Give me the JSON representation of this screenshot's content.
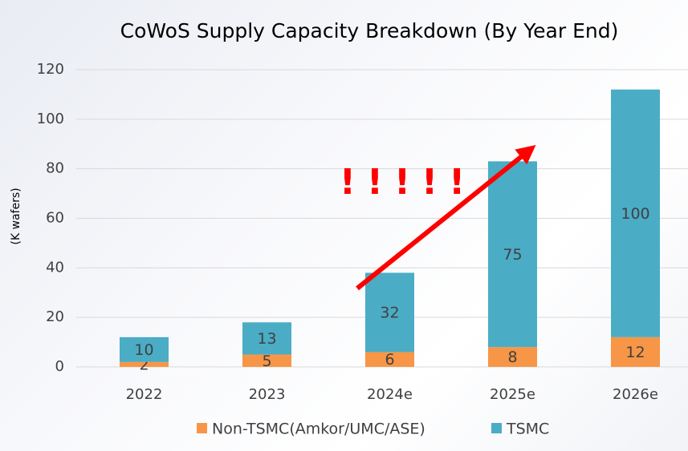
{
  "chart_data": {
    "type": "stacked-bar",
    "title": "CoWoS Supply Capacity Breakdown (By Year End)",
    "y_label": "(K wafers)",
    "annotation": "!!!!!",
    "categories": [
      "2022",
      "2023",
      "2024e",
      "2025e",
      "2026e"
    ],
    "series": [
      {
        "name": "Non-TSMC(Amkor/UMC/ASE)",
        "color": "#f79646",
        "values": [
          2,
          5,
          6,
          8,
          12
        ]
      },
      {
        "name": "TSMC",
        "color": "#4bacc6",
        "values": [
          10,
          13,
          32,
          75,
          100
        ]
      }
    ],
    "ylim": [
      0,
      120
    ],
    "yticks": [
      0,
      20,
      40,
      60,
      80,
      100,
      120
    ],
    "grid": true
  }
}
